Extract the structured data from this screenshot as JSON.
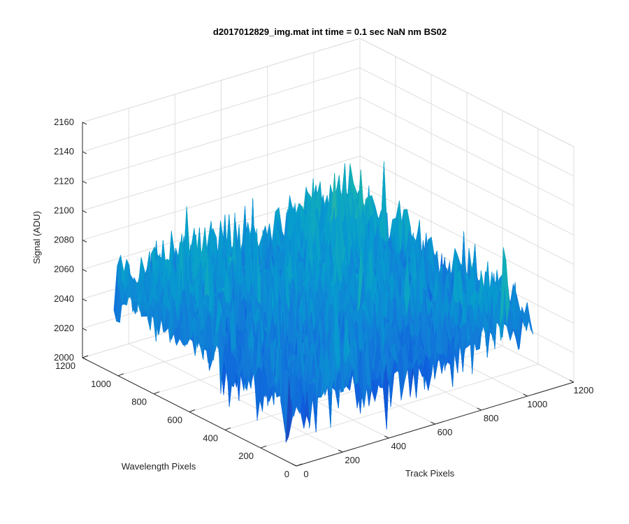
{
  "chart_data": {
    "type": "surface",
    "title": "d2017012829_img.mat int time = 0.1 sec  NaN nm BS02",
    "xlabel": "Track Pixels",
    "ylabel": "Wavelength Pixels",
    "zlabel": "Signal (ADU)",
    "xlim": [
      0,
      1200
    ],
    "ylim": [
      0,
      1200
    ],
    "zlim": [
      2000,
      2160
    ],
    "x_ticks": [
      0,
      200,
      400,
      600,
      800,
      1000,
      1200
    ],
    "y_ticks": [
      0,
      200,
      400,
      600,
      800,
      1000,
      1200
    ],
    "z_ticks": [
      2000,
      2020,
      2040,
      2060,
      2080,
      2100,
      2120,
      2140,
      2160
    ],
    "data_extent": {
      "x": [
        0,
        1024
      ],
      "y": [
        0,
        1024
      ]
    },
    "surface_summary": {
      "baseline_adu": 2045,
      "peak_adu": 2155,
      "noise_description": "dense pixel noise, higher signal toward far corner"
    },
    "grid": true,
    "colormap": "parula"
  }
}
